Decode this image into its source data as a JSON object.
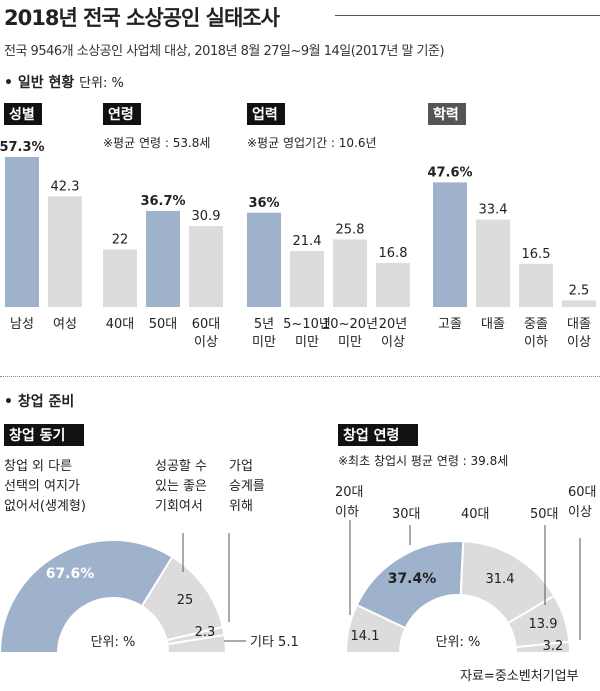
{
  "header": {
    "title": "2018년 전국 소상공인 실태조사",
    "subtitle": "전국 9546개 소상공인 사업체 대상, 2018년 8월 27일~9월 14일(2017년 말 기준)"
  },
  "section1": {
    "label": "• 일반 현황",
    "unit": "단위: %"
  },
  "section2": {
    "label": "• 창업 준비"
  },
  "source": "자료=중소벤처기업부",
  "colors": {
    "highlight": "#9eb2cc",
    "normal": "#dcdcdc",
    "tag": "#111111"
  },
  "chart_data": [
    {
      "type": "bar",
      "title": "성별",
      "note": "",
      "categories": [
        "남성",
        "여성"
      ],
      "values": [
        57.3,
        42.3
      ],
      "labels": [
        "57.3%",
        "42.3"
      ],
      "highlight": [
        true,
        false
      ]
    },
    {
      "type": "bar",
      "title": "연령",
      "note": "※평균 연령 : 53.8세",
      "categories": [
        "40대",
        "50대",
        "60대\n이상"
      ],
      "values": [
        22,
        36.7,
        30.9
      ],
      "labels": [
        "22",
        "36.7%",
        "30.9"
      ],
      "highlight": [
        false,
        true,
        false
      ]
    },
    {
      "type": "bar",
      "title": "업력",
      "note": "※평균 영업기간 : 10.6년",
      "categories": [
        "5년\n미만",
        "5~10년\n미만",
        "10~20년\n미만",
        "20년\n이상"
      ],
      "values": [
        36,
        21.4,
        25.8,
        16.8
      ],
      "labels": [
        "36%",
        "21.4",
        "25.8",
        "16.8"
      ],
      "highlight": [
        true,
        false,
        false,
        false
      ]
    },
    {
      "type": "bar",
      "title": "학력",
      "note": "",
      "categories": [
        "고졸",
        "대졸",
        "중졸\n이하",
        "대졸\n이상"
      ],
      "values": [
        47.6,
        33.4,
        16.5,
        2.5
      ],
      "labels": [
        "47.6%",
        "33.4",
        "16.5",
        "2.5"
      ],
      "highlight": [
        true,
        false,
        false,
        false
      ]
    },
    {
      "type": "pie",
      "title": "창업 동기",
      "unit": "단위: %",
      "slices": [
        {
          "name": "창업 외 다른\n선택의 여지가\n없어서(생계형)",
          "value": 67.6,
          "label": "67.6%",
          "highlight": true
        },
        {
          "name": "성공할 수\n있는 좋은\n기회여서",
          "value": 25,
          "label": "25",
          "highlight": false
        },
        {
          "name": "가업\n승계를\n위해",
          "value": 2.3,
          "label": "2.3",
          "highlight": false
        },
        {
          "name": "기타",
          "value": 5.1,
          "label": "기타 5.1",
          "highlight": false
        }
      ]
    },
    {
      "type": "pie",
      "title": "창업 연령",
      "unit": "단위: %",
      "note": "※최초 창업시 평균 연령 : 39.8세",
      "slices": [
        {
          "name": "20대\n이하",
          "value": 14.1,
          "label": "14.1",
          "highlight": false
        },
        {
          "name": "30대",
          "value": 37.4,
          "label": "37.4%",
          "highlight": true
        },
        {
          "name": "40대",
          "value": 31.4,
          "label": "31.4",
          "highlight": false
        },
        {
          "name": "50대",
          "value": 13.9,
          "label": "13.9",
          "highlight": false
        },
        {
          "name": "60대\n이상",
          "value": 3.2,
          "label": "3.2",
          "highlight": false
        }
      ]
    }
  ]
}
